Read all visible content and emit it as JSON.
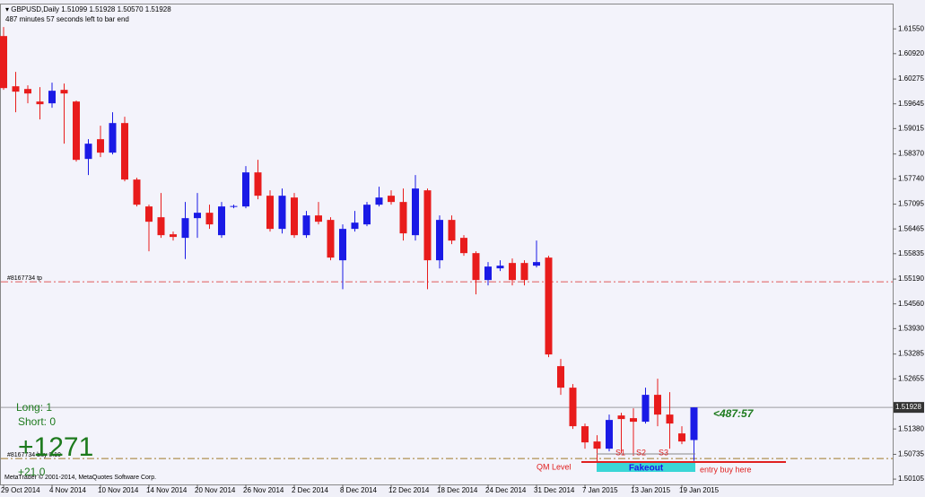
{
  "chart_data": {
    "type": "candlestick",
    "title": "GBPUSD,Daily",
    "ohlc_header": [
      "1.51099",
      "1.51928",
      "1.50570",
      "1.51928"
    ],
    "subtitle": "487 minutes 57 seconds left to bar end",
    "categories": [
      "29 Oct 2014",
      null,
      null,
      null,
      "4 Nov 2014",
      null,
      null,
      null,
      "10 Nov 2014",
      null,
      null,
      null,
      "14 Nov 2014",
      null,
      null,
      null,
      "20 Nov 2014",
      null,
      null,
      null,
      "26 Nov 2014",
      null,
      null,
      null,
      "2 Dec 2014",
      null,
      null,
      null,
      "8 Dec 2014",
      null,
      null,
      null,
      "12 Dec 2014",
      null,
      null,
      null,
      "18 Dec 2014",
      null,
      null,
      null,
      "24 Dec 2014",
      null,
      null,
      null,
      "31 Dec 2014",
      null,
      null,
      null,
      "7 Jan 2015",
      null,
      null,
      null,
      "13 Jan 2015",
      null,
      null,
      null,
      "19 Jan 2015",
      null
    ],
    "open": [
      1.61368,
      1.60091,
      1.60022,
      1.59703,
      1.59658,
      1.6,
      1.59703,
      1.58244,
      1.58746,
      1.58404,
      1.59156,
      1.5772,
      1.57036,
      1.56762,
      1.56329,
      1.56238,
      1.56739,
      1.56876,
      1.56306,
      1.57025,
      1.57036,
      1.57902,
      1.57309,
      1.56466,
      1.57263,
      1.56306,
      1.56808,
      1.56694,
      1.55668,
      1.56466,
      1.5658,
      1.57081,
      1.57309,
      1.5715,
      1.56306,
      1.57446,
      1.55668,
      1.56694,
      1.56238,
      1.5585,
      1.55166,
      1.55463,
      1.55599,
      1.55599,
      1.55531,
      1.55736,
      1.52977,
      1.5243,
      1.5145,
      1.51062,
      1.50879,
      1.51723,
      1.51655,
      1.51564,
      1.52248,
      1.51746,
      1.51267,
      1.51099
    ],
    "high": [
      1.61596,
      1.60456,
      1.60114,
      1.60068,
      1.60182,
      1.60159,
      1.59726,
      1.58746,
      1.59088,
      1.5943,
      1.59316,
      1.57765,
      1.57081,
      1.57378,
      1.56397,
      1.5715,
      1.57378,
      1.57081,
      1.5715,
      1.57081,
      1.58062,
      1.58221,
      1.57446,
      1.57492,
      1.57378,
      1.56922,
      1.5715,
      1.56762,
      1.5658,
      1.56922,
      1.5715,
      1.57537,
      1.57446,
      1.57492,
      1.57834,
      1.57492,
      1.56808,
      1.56808,
      1.56306,
      1.55896,
      1.55622,
      1.55668,
      1.55713,
      1.55668,
      1.56169,
      1.55782,
      1.5316,
      1.52521,
      1.51518,
      1.51222,
      1.51746,
      1.51792,
      1.51906,
      1.5243,
      1.52658,
      1.52316,
      1.5145,
      1.51928
    ],
    "low": [
      1.6,
      1.5943,
      1.59658,
      1.59247,
      1.59544,
      1.58632,
      1.58176,
      1.57834,
      1.5829,
      1.58358,
      1.57674,
      1.57036,
      1.55896,
      1.56238,
      1.56169,
      1.557,
      1.56238,
      1.56466,
      1.56238,
      1.5699,
      1.5699,
      1.57218,
      1.56397,
      1.5635,
      1.56238,
      1.56238,
      1.5658,
      1.55668,
      1.54934,
      1.56397,
      1.56534,
      1.57036,
      1.57081,
      1.56169,
      1.56169,
      1.54934,
      1.5546,
      1.56078,
      1.55782,
      1.54801,
      1.5503,
      1.55394,
      1.5503,
      1.5503,
      1.55485,
      1.53206,
      1.52248,
      1.51381,
      1.50879,
      1.5031,
      1.5081,
      1.50766,
      1.50698,
      1.51518,
      1.5145,
      1.50879,
      1.50994,
      1.5057
    ],
    "close": [
      1.60045,
      1.59954,
      1.59908,
      1.59635,
      1.59977,
      1.59908,
      1.58221,
      1.58632,
      1.58404,
      1.59156,
      1.5772,
      1.57081,
      1.56648,
      1.56306,
      1.56261,
      1.56739,
      1.56876,
      1.5658,
      1.57036,
      1.57047,
      1.57902,
      1.57309,
      1.56466,
      1.57309,
      1.56306,
      1.56808,
      1.56648,
      1.55736,
      1.56466,
      1.56625,
      1.57081,
      1.57263,
      1.5715,
      1.56352,
      1.57492,
      1.55668,
      1.56694,
      1.56169,
      1.5585,
      1.55166,
      1.55508,
      1.55531,
      1.55166,
      1.55166,
      1.55622,
      1.53274,
      1.5243,
      1.5145,
      1.51039,
      1.50879,
      1.51609,
      1.51632,
      1.51564,
      1.52248,
      1.51746,
      1.51518,
      1.51062,
      1.51928
    ],
    "up_color": "#1a1ae6",
    "down_color": "#e81c1c",
    "ylim": [
      1.4997,
      1.6217
    ],
    "yticks": [
      {
        "value": 1.6155,
        "label": "1.61550"
      },
      {
        "value": 1.6092,
        "label": "1.60920"
      },
      1.60275,
      1.59645,
      1.59015,
      {
        "value": 1.5837,
        "label": "1.58370"
      },
      {
        "value": 1.5774,
        "label": "1.57740"
      },
      1.57095,
      1.56465,
      1.55835,
      {
        "value": 1.5519,
        "label": "1.55190"
      },
      {
        "value": 1.5456,
        "label": "1.54560"
      },
      {
        "value": 1.5393,
        "label": "1.53930"
      },
      1.53285,
      1.52655,
      {
        "value": 1.5138,
        "label": "1.51380"
      },
      1.50735,
      1.50105
    ],
    "levels": [
      {
        "label": "#8167734 tp",
        "value": 1.5512,
        "color": "#e05a5a",
        "style": "dash-dot"
      },
      {
        "label": "#8167734 buy 0.10",
        "value": 1.50629,
        "color": "#a07a2a",
        "style": "dash-dot"
      },
      {
        "label": "1.51928",
        "value": 1.51928,
        "color": "#9a9aa0",
        "style": "solid"
      }
    ],
    "countdown": "<487:57",
    "annotations": {
      "long": "Long: 1",
      "short": "Short: 0",
      "profit": "+1271",
      "pips": "+21.0",
      "copyright": "MetaTrader © 2001-2014, MetaQuotes Software Corp.",
      "s1": "S1",
      "s2": "S2",
      "s3": "S3",
      "qm": "QM Level",
      "fakeout": "Fakeout",
      "entry": "entry buy here"
    }
  }
}
